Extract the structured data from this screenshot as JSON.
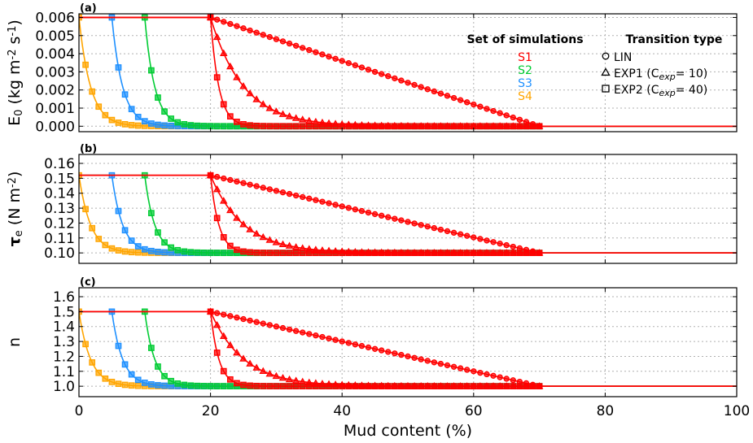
{
  "chart_data": {
    "type": "line",
    "xlabel": "Mud content (%)",
    "xlim": [
      0,
      100
    ],
    "xticks": [
      "0",
      "20",
      "40",
      "60",
      "80",
      "100"
    ],
    "grid": true,
    "legend": {
      "location": "top-right",
      "simulations_title": "Set of simulations",
      "transition_title": "Transition type",
      "simulations": [
        {
          "name": "S1",
          "color": "#ff0000",
          "start": 20
        },
        {
          "name": "S2",
          "color": "#00cc33",
          "start": 10
        },
        {
          "name": "S3",
          "color": "#1e90ff",
          "start": 5
        },
        {
          "name": "S4",
          "color": "#ffa500",
          "start": 0
        }
      ],
      "transitions": [
        {
          "marker": "circle",
          "label": "LIN"
        },
        {
          "marker": "triangle",
          "label": "EXP1 (C",
          "sub": "exp",
          "suffix": "= 10)"
        },
        {
          "marker": "square",
          "label": "EXP2 (C",
          "sub": "exp",
          "suffix": "= 40)"
        }
      ]
    },
    "model": {
      "mud_end": 70,
      "marker_step": 1,
      "transition_types": [
        "LIN",
        "EXP1",
        "EXP2"
      ],
      "c_exp": {
        "EXP1": 10,
        "EXP2": 40
      },
      "plotted_series": [
        {
          "simulation": "S1",
          "transition": "LIN"
        },
        {
          "simulation": "S1",
          "transition": "EXP1"
        },
        {
          "simulation": "S1",
          "transition": "EXP2"
        },
        {
          "simulation": "S2",
          "transition": "EXP2"
        },
        {
          "simulation": "S3",
          "transition": "EXP2"
        },
        {
          "simulation": "S4",
          "transition": "EXP2"
        }
      ]
    },
    "panels": [
      {
        "label": "(a)",
        "ylabel_main": "E",
        "ylabel_sub": "0",
        "ylabel_rest": " (kg m",
        "ylabel_sup1": "-2",
        "ylabel_mid": " s",
        "ylabel_sup2": "-1",
        "ylabel_end": ")",
        "ylim": [
          -0.0003,
          0.0062
        ],
        "yticks": [
          0.0,
          0.001,
          0.002,
          0.003,
          0.004,
          0.005,
          0.006
        ],
        "ytick_labels": [
          "0.000",
          "0.001",
          "0.002",
          "0.003",
          "0.004",
          "0.005",
          "0.006"
        ],
        "sand_value": 0.006,
        "mud_value": 0.0
      },
      {
        "label": "(b)",
        "ylabel_main": "τ",
        "ylabel_sub": "e",
        "ylabel_rest": " (N m",
        "ylabel_sup1": "-2",
        "ylabel_mid": "",
        "ylabel_sup2": "",
        "ylabel_end": ")",
        "ylim": [
          0.093,
          0.166
        ],
        "yticks": [
          0.1,
          0.11,
          0.12,
          0.13,
          0.14,
          0.15,
          0.16
        ],
        "ytick_labels": [
          "0.10",
          "0.11",
          "0.12",
          "0.13",
          "0.14",
          "0.15",
          "0.16"
        ],
        "sand_value": 0.152,
        "mud_value": 0.1
      },
      {
        "label": "(c)",
        "ylabel_main": "n",
        "ylabel_sub": "",
        "ylabel_rest": "",
        "ylabel_sup1": "",
        "ylabel_mid": "",
        "ylabel_sup2": "",
        "ylabel_end": "",
        "ylim": [
          0.93,
          1.66
        ],
        "yticks": [
          1.0,
          1.1,
          1.2,
          1.3,
          1.4,
          1.5,
          1.6
        ],
        "ytick_labels": [
          "1.0",
          "1.1",
          "1.2",
          "1.3",
          "1.4",
          "1.5",
          "1.6"
        ],
        "sand_value": 1.5,
        "mud_value": 1.0
      }
    ]
  }
}
